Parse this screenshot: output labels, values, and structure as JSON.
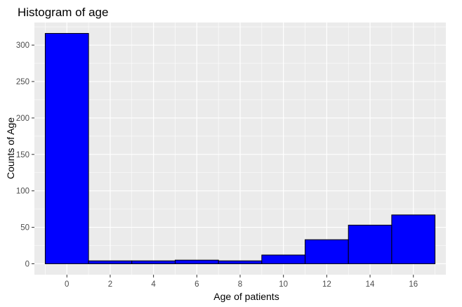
{
  "chart_data": {
    "type": "bar",
    "title": "Histogram of age",
    "xlabel": "Age of patients",
    "ylabel": "Counts of Age",
    "bin_width": 2,
    "bins": [
      {
        "center": 0,
        "count": 316
      },
      {
        "center": 2,
        "count": 4
      },
      {
        "center": 4,
        "count": 4
      },
      {
        "center": 6,
        "count": 5
      },
      {
        "center": 8,
        "count": 4
      },
      {
        "center": 10,
        "count": 12
      },
      {
        "center": 12,
        "count": 33
      },
      {
        "center": 14,
        "count": 53
      },
      {
        "center": 16,
        "count": 67
      }
    ],
    "xlim": [
      -1.5,
      17.5
    ],
    "ylim": [
      -15,
      331
    ],
    "x_ticks": [
      0,
      2,
      4,
      6,
      8,
      10,
      12,
      14,
      16
    ],
    "x_tick_labels": [
      "0",
      "2",
      "4",
      "6",
      "8",
      "10",
      "12",
      "14",
      "16"
    ],
    "y_ticks": [
      0,
      50,
      100,
      150,
      200,
      250,
      300
    ],
    "y_tick_labels": [
      "0",
      "50",
      "100",
      "150",
      "200",
      "250",
      "300"
    ],
    "grid": true,
    "legend": "none",
    "colors": {
      "bar_fill": "#0000ff",
      "bar_stroke": "#000000",
      "panel_background": "#ebebeb",
      "grid_major": "#ffffff",
      "tick_label": "#4d4d4d"
    }
  }
}
